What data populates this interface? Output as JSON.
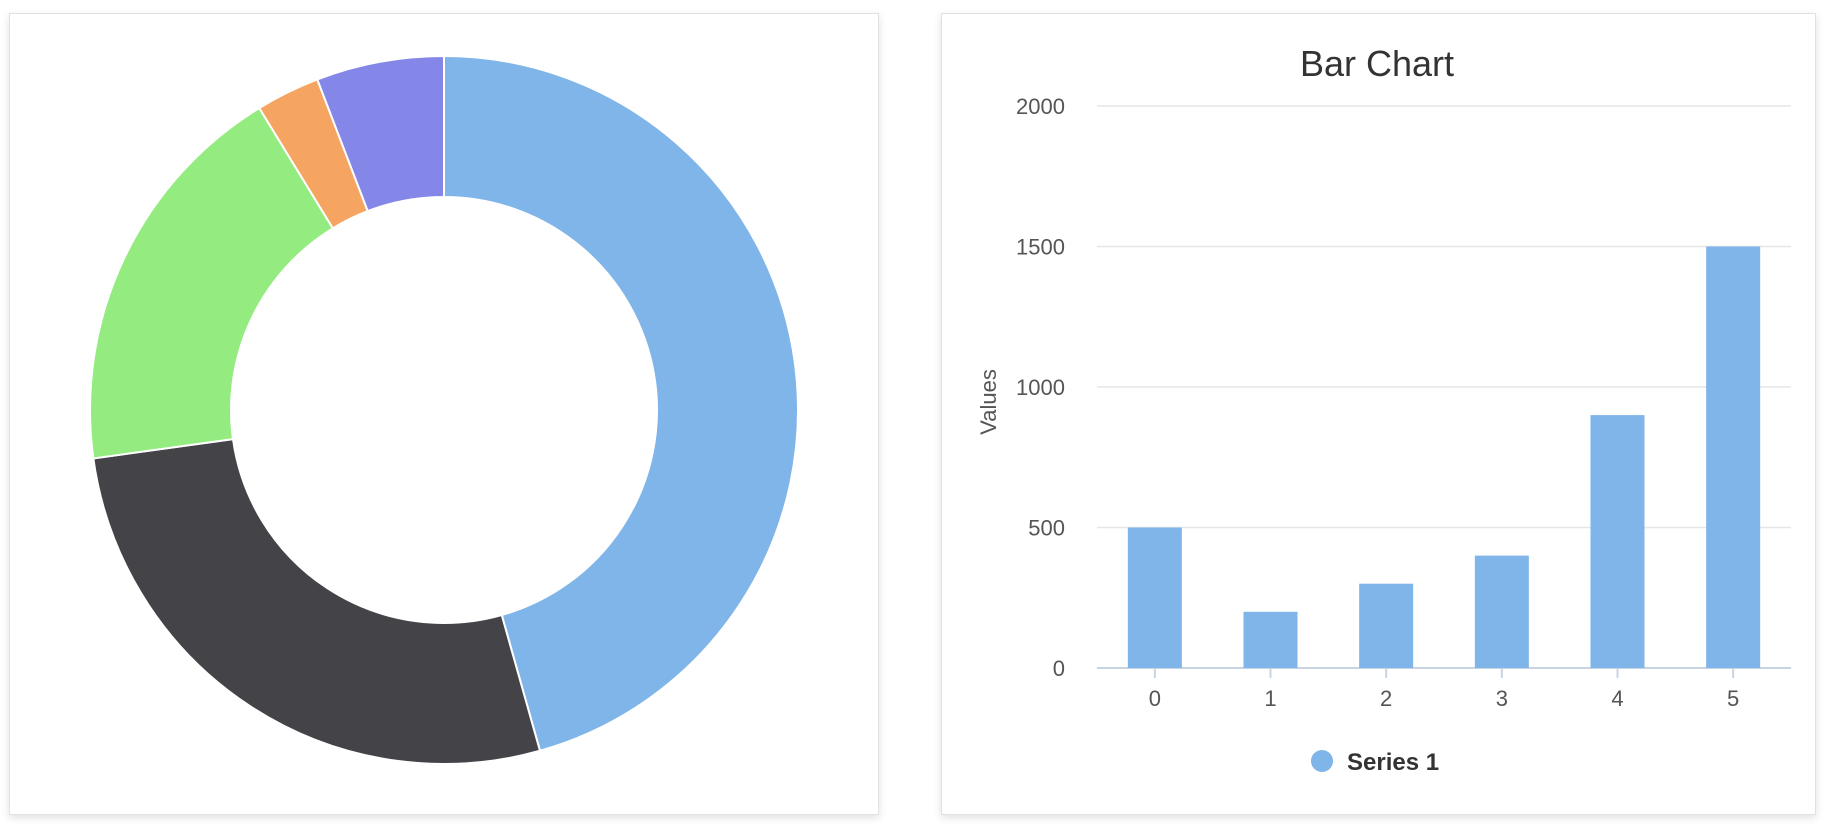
{
  "chart_data": [
    {
      "type": "pie",
      "variant": "donut",
      "slices": [
        {
          "value": 47,
          "color": "#7fb5e8"
        },
        {
          "value": 28,
          "color": "#434348"
        },
        {
          "value": 19,
          "color": "#94ec80"
        },
        {
          "value": 3,
          "color": "#f5a461"
        },
        {
          "value": 6,
          "color": "#8487e8"
        }
      ]
    },
    {
      "type": "bar",
      "title": "Bar Chart",
      "xlabel": "",
      "ylabel": "Values",
      "categories": [
        "0",
        "1",
        "2",
        "3",
        "4",
        "5"
      ],
      "series": [
        {
          "name": "Series 1",
          "color": "#7fb5e8",
          "values": [
            500,
            200,
            300,
            400,
            900,
            1500
          ]
        }
      ],
      "ylim": [
        0,
        2000
      ],
      "yticks": [
        0,
        500,
        1000,
        1500,
        2000
      ],
      "grid": true,
      "legend": "bottom-center"
    }
  ]
}
